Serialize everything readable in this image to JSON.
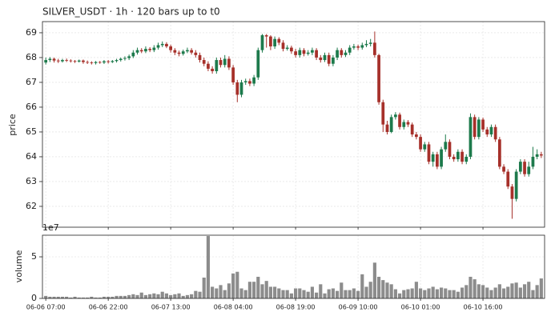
{
  "chart_data": {
    "type": "candlestick",
    "title": "SILVER_USDT  ·  1h  ·  120 bars up to t0",
    "ylabel": "price",
    "up_color": "#1d7a4c",
    "down_color": "#a6302a",
    "grid": true,
    "xlim": [
      -0.8,
      119.8
    ],
    "xticks": [
      {
        "value": 0,
        "label": "06-06 07:00"
      },
      {
        "value": 15,
        "label": "06-06 22:00"
      },
      {
        "value": 30,
        "label": "06-07 13:00"
      },
      {
        "value": 45,
        "label": "06-08 04:00"
      },
      {
        "value": 60,
        "label": "06-08 19:00"
      },
      {
        "value": 75,
        "label": "06-09 10:00"
      },
      {
        "value": 90,
        "label": "06-10 01:00"
      },
      {
        "value": 105,
        "label": "06-10 16:00"
      }
    ],
    "ylim": [
      61.16,
      69.45
    ],
    "yticks": [
      62,
      63,
      64,
      65,
      66,
      67,
      68,
      69
    ],
    "open": [
      67.8,
      67.9,
      67.95,
      67.88,
      67.85,
      67.9,
      67.88,
      67.86,
      67.84,
      67.88,
      67.82,
      67.8,
      67.78,
      67.82,
      67.8,
      67.85,
      67.82,
      67.86,
      67.9,
      67.95,
      67.98,
      68.05,
      68.2,
      68.3,
      68.25,
      68.35,
      68.3,
      68.4,
      68.5,
      68.55,
      68.45,
      68.3,
      68.2,
      68.15,
      68.25,
      68.3,
      68.2,
      68.1,
      67.9,
      67.75,
      67.55,
      67.45,
      67.9,
      67.7,
      67.95,
      67.6,
      67.0,
      66.5,
      67.0,
      67.05,
      66.95,
      67.2,
      68.3,
      68.9,
      68.85,
      68.45,
      68.75,
      68.6,
      68.35,
      68.4,
      68.25,
      68.1,
      68.3,
      68.15,
      68.2,
      68.3,
      68.0,
      67.9,
      68.1,
      67.75,
      68.0,
      68.3,
      68.1,
      68.2,
      68.4,
      68.45,
      68.4,
      68.5,
      68.55,
      68.6,
      68.1,
      66.2,
      65.3,
      65.0,
      65.6,
      65.7,
      65.2,
      65.4,
      65.3,
      64.9,
      64.8,
      64.3,
      64.5,
      63.8,
      64.1,
      63.6,
      64.3,
      64.6,
      64.0,
      63.9,
      64.2,
      63.8,
      64.0,
      65.6,
      64.8,
      65.5,
      65.1,
      64.9,
      65.2,
      64.7,
      63.6,
      63.4,
      62.8,
      62.3,
      63.4,
      63.8,
      63.3,
      63.6,
      64.0,
      64.1
    ],
    "high": [
      68.0,
      68.02,
      68.0,
      67.95,
      67.95,
      67.96,
      67.93,
      67.9,
      67.92,
      67.92,
      67.88,
      67.85,
      67.86,
      67.86,
      67.9,
      67.9,
      67.9,
      67.95,
      68.0,
      68.05,
      68.12,
      68.3,
      68.4,
      68.38,
      68.45,
      68.42,
      68.5,
      68.6,
      68.65,
      68.62,
      68.52,
      68.38,
      68.28,
      68.32,
      68.4,
      68.38,
      68.3,
      68.2,
      68.0,
      67.85,
      67.65,
      68.0,
      68.0,
      68.1,
      68.05,
      67.7,
      67.1,
      67.1,
      67.15,
      67.15,
      67.3,
      68.4,
      68.95,
      68.95,
      68.9,
      68.85,
      68.82,
      68.7,
      68.5,
      68.48,
      68.35,
      68.4,
      68.38,
      68.3,
      68.4,
      68.38,
      68.1,
      68.2,
      68.2,
      68.1,
      68.4,
      68.38,
      68.3,
      68.5,
      68.55,
      68.52,
      68.6,
      68.7,
      68.75,
      69.05,
      68.15,
      66.3,
      65.45,
      65.7,
      65.8,
      65.78,
      65.5,
      65.48,
      65.38,
      65.0,
      64.9,
      64.6,
      64.6,
      64.2,
      64.2,
      64.4,
      64.9,
      64.7,
      64.1,
      64.3,
      64.3,
      64.1,
      65.75,
      65.7,
      65.6,
      65.58,
      65.2,
      65.3,
      65.3,
      64.8,
      63.7,
      63.5,
      62.9,
      63.5,
      63.9,
      63.9,
      63.8,
      64.4,
      64.3,
      64.2
    ],
    "low": [
      67.72,
      67.82,
      67.8,
      67.78,
      67.8,
      67.82,
      67.8,
      67.78,
      67.8,
      67.75,
      67.74,
      67.72,
      67.72,
      67.75,
      67.74,
      67.76,
      67.78,
      67.8,
      67.84,
      67.88,
      67.9,
      67.98,
      68.12,
      68.18,
      68.18,
      68.22,
      68.22,
      68.32,
      68.42,
      68.38,
      68.2,
      68.1,
      68.05,
      68.08,
      68.18,
      68.12,
      68.0,
      67.8,
      67.65,
      67.45,
      67.35,
      67.35,
      67.6,
      67.6,
      67.5,
      66.9,
      66.2,
      66.4,
      66.9,
      66.85,
      66.85,
      67.1,
      68.2,
      68.4,
      68.3,
      68.35,
      68.5,
      68.25,
      68.28,
      68.15,
      68.0,
      68.0,
      68.05,
      68.08,
      68.1,
      67.9,
      67.8,
      67.82,
      67.65,
      67.65,
      67.9,
      68.0,
      68.02,
      68.1,
      68.32,
      68.3,
      68.32,
      68.42,
      68.45,
      68.0,
      66.1,
      65.0,
      64.9,
      64.95,
      65.5,
      65.1,
      65.1,
      65.2,
      64.8,
      64.7,
      64.2,
      64.2,
      63.7,
      63.6,
      63.5,
      63.5,
      64.2,
      63.9,
      63.8,
      63.8,
      63.7,
      63.7,
      63.9,
      64.7,
      64.7,
      65.0,
      64.8,
      64.8,
      64.6,
      63.5,
      63.3,
      62.7,
      61.5,
      62.2,
      63.3,
      63.2,
      63.2,
      63.5,
      63.9,
      63.95
    ],
    "close": [
      67.9,
      67.95,
      67.88,
      67.85,
      67.9,
      67.88,
      67.86,
      67.84,
      67.88,
      67.82,
      67.8,
      67.78,
      67.82,
      67.8,
      67.85,
      67.82,
      67.86,
      67.9,
      67.95,
      67.98,
      68.05,
      68.2,
      68.3,
      68.25,
      68.35,
      68.3,
      68.4,
      68.5,
      68.55,
      68.45,
      68.3,
      68.2,
      68.15,
      68.25,
      68.3,
      68.2,
      68.1,
      67.9,
      67.75,
      67.55,
      67.45,
      67.9,
      67.7,
      67.95,
      67.6,
      67.0,
      66.5,
      67.0,
      67.05,
      66.95,
      67.2,
      68.3,
      68.9,
      68.85,
      68.45,
      68.75,
      68.6,
      68.35,
      68.4,
      68.25,
      68.1,
      68.3,
      68.15,
      68.2,
      68.3,
      68.0,
      67.9,
      68.1,
      67.75,
      68.0,
      68.3,
      68.1,
      68.2,
      68.4,
      68.45,
      68.4,
      68.5,
      68.55,
      68.6,
      68.1,
      66.2,
      65.3,
      65.0,
      65.6,
      65.7,
      65.2,
      65.4,
      65.3,
      64.9,
      64.8,
      64.3,
      64.5,
      63.8,
      64.1,
      63.6,
      64.3,
      64.6,
      64.0,
      63.9,
      64.2,
      63.8,
      64.0,
      65.6,
      64.8,
      65.5,
      65.1,
      64.9,
      65.2,
      64.7,
      63.6,
      63.4,
      62.8,
      62.3,
      63.4,
      63.8,
      63.3,
      63.6,
      64.0,
      64.1,
      64.05
    ],
    "volume": {
      "ylabel": "volume",
      "offset_label": "1e7",
      "color": "#8c8c8c",
      "ylim": [
        0,
        76000000
      ],
      "yticks": [
        0,
        {
          "value": 50000000,
          "label": "5"
        }
      ],
      "values": [
        3000000,
        2000000,
        2000000,
        2000000,
        2000000,
        2000000,
        1000000,
        2000000,
        1000000,
        1000000,
        1000000,
        2000000,
        1000000,
        1000000,
        2000000,
        2000000,
        2000000,
        3000000,
        3000000,
        3000000,
        4000000,
        5000000,
        4000000,
        7000000,
        4000000,
        5000000,
        6000000,
        5000000,
        8000000,
        6000000,
        4000000,
        5000000,
        6000000,
        3000000,
        4000000,
        5000000,
        9000000,
        8000000,
        25000000,
        75000000,
        14000000,
        12000000,
        16000000,
        10000000,
        18000000,
        30000000,
        32000000,
        12000000,
        10000000,
        20000000,
        20000000,
        26000000,
        17000000,
        21000000,
        14000000,
        14000000,
        12000000,
        10000000,
        10000000,
        6000000,
        12000000,
        12000000,
        10000000,
        8000000,
        14000000,
        7000000,
        17000000,
        6000000,
        11000000,
        12000000,
        9000000,
        19000000,
        10000000,
        10000000,
        12000000,
        9000000,
        29000000,
        14000000,
        20000000,
        43000000,
        26000000,
        22000000,
        19000000,
        17000000,
        11000000,
        6000000,
        10000000,
        11000000,
        12000000,
        20000000,
        12000000,
        10000000,
        12000000,
        14000000,
        11000000,
        13000000,
        12000000,
        10000000,
        10000000,
        8000000,
        13000000,
        16000000,
        26000000,
        23000000,
        17000000,
        16000000,
        13000000,
        10000000,
        13000000,
        17000000,
        12000000,
        14000000,
        18000000,
        19000000,
        13000000,
        17000000,
        20000000,
        10000000,
        16000000,
        24000000
      ]
    }
  }
}
